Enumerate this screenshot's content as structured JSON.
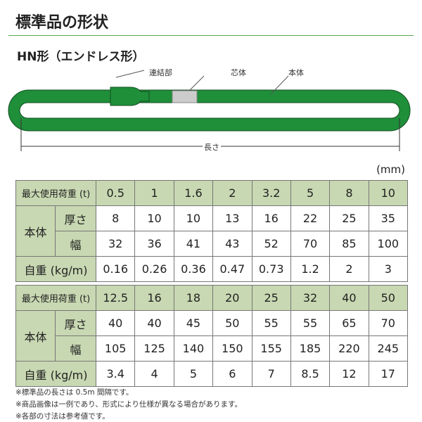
{
  "title": "標準品の形状",
  "subtitle": "HN形（エンドレス形）",
  "diagram": {
    "joint": "連結部",
    "core": "芯体",
    "body": "本体",
    "length": "長さ",
    "sling_color": "#1f8f3a"
  },
  "unit": "(mm)",
  "tables": [
    {
      "load_label": "最大使用荷重 (t)",
      "body_label": "本体",
      "thickness_label": "厚さ",
      "width_label": "幅",
      "weight_label": "自重 (kg/m)",
      "loads": [
        "0.5",
        "1",
        "1.6",
        "2",
        "3.2",
        "5",
        "8",
        "10"
      ],
      "thickness": [
        "8",
        "10",
        "10",
        "13",
        "16",
        "22",
        "25",
        "35"
      ],
      "width": [
        "32",
        "36",
        "41",
        "43",
        "52",
        "70",
        "85",
        "100"
      ],
      "weight": [
        "0.16",
        "0.26",
        "0.36",
        "0.47",
        "0.73",
        "1.2",
        "2",
        "3"
      ]
    },
    {
      "load_label": "最大使用荷重 (t)",
      "body_label": "本体",
      "thickness_label": "厚さ",
      "width_label": "幅",
      "weight_label": "自重 (kg/m)",
      "loads": [
        "12.5",
        "16",
        "18",
        "20",
        "25",
        "32",
        "40",
        "50"
      ],
      "thickness": [
        "40",
        "40",
        "45",
        "50",
        "55",
        "55",
        "65",
        "70"
      ],
      "width": [
        "105",
        "125",
        "140",
        "150",
        "155",
        "185",
        "220",
        "245"
      ],
      "weight": [
        "3.4",
        "4",
        "5",
        "6",
        "7",
        "8.5",
        "12",
        "17"
      ]
    }
  ],
  "notes": [
    "※標準品の長さは 0.5m 間隔です。",
    "※商品画像は一例であり、形式により仕様が異なる場合があります。",
    "※各部の寸法は参考値です。"
  ]
}
